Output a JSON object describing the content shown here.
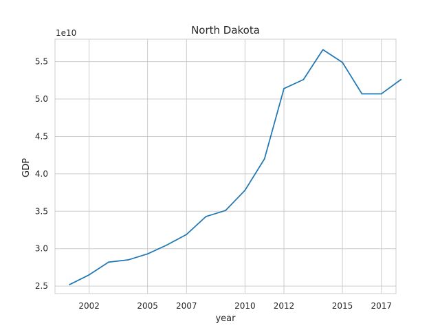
{
  "chart_data": {
    "type": "line",
    "title": "North Dakota",
    "xlabel": "year",
    "ylabel": "GDP",
    "y_offset_label": "1e10",
    "xlim": [
      2000.25,
      2017.75
    ],
    "ylim": [
      2.4,
      5.8
    ],
    "x_ticks": [
      2002,
      2005,
      2007,
      2010,
      2012,
      2015,
      2017
    ],
    "x_tick_labels": [
      "2002",
      "2005",
      "2007",
      "2010",
      "2012",
      "2015",
      "2017"
    ],
    "y_ticks": [
      2.5,
      3.0,
      3.5,
      4.0,
      4.5,
      5.0,
      5.5
    ],
    "y_tick_labels": [
      "2.5",
      "3.0",
      "3.5",
      "4.0",
      "4.5",
      "5.0",
      "5.5"
    ],
    "grid": true,
    "series": [
      {
        "color": "#1f77b4",
        "x": [
          2001,
          2002,
          2003,
          2004,
          2005,
          2006,
          2007,
          2008,
          2009,
          2010,
          2011,
          2012,
          2013,
          2014,
          2015,
          2016,
          2017,
          2018
        ],
        "y": [
          2.52,
          2.65,
          2.82,
          2.85,
          2.93,
          3.05,
          3.19,
          3.43,
          3.51,
          3.78,
          4.2,
          5.14,
          5.26,
          5.66,
          5.49,
          5.07,
          5.07,
          5.26
        ]
      }
    ]
  }
}
